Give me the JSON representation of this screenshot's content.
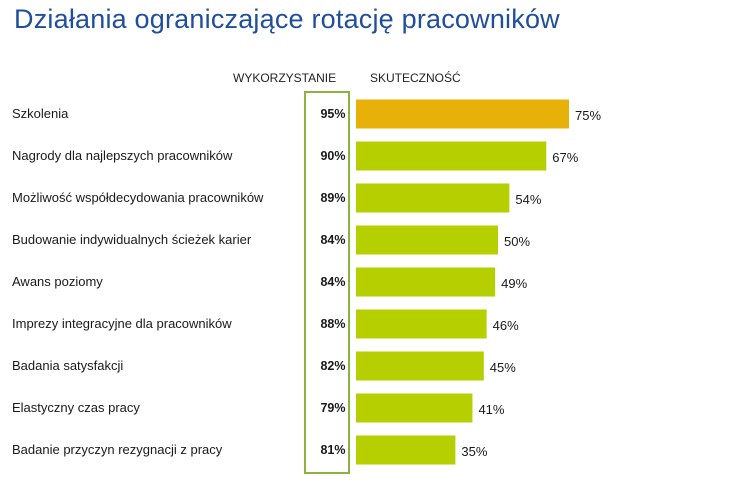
{
  "title": "Działania ograniczające rotację pracowników",
  "headers": {
    "usage": "WYKORZYSTANIE",
    "effectiveness": "SKUTECZNOŚĆ"
  },
  "colors": {
    "title": "#1f4e9c",
    "highlight_bar": "#e8b10a",
    "bar": "#b5cf00",
    "usage_box": "#8cb33e"
  },
  "chart_data": {
    "type": "bar",
    "orientation": "horizontal",
    "title": "Działania ograniczające rotację pracowników",
    "categories": [
      "Szkolenia",
      "Nagrody dla najlepszych pracowników",
      "Możliwość współdecydowania pracowników",
      "Budowanie indywidualnych ścieżek karier",
      "Awans poziomy",
      "Imprezy integracyjne dla pracowników",
      "Badania satysfakcji",
      "Elastyczny czas pracy",
      "Badanie przyczyn rezygnacji z pracy"
    ],
    "series": [
      {
        "name": "SKUTECZNOŚĆ",
        "values": [
          75,
          67,
          54,
          50,
          49,
          46,
          45,
          41,
          35
        ],
        "labels": [
          "75%",
          "67%",
          "54%",
          "50%",
          "49%",
          "46%",
          "45%",
          "41%",
          "35%"
        ]
      },
      {
        "name": "WYKORZYSTANIE",
        "values": [
          95,
          90,
          89,
          84,
          84,
          88,
          82,
          79,
          81
        ],
        "labels": [
          "95%",
          "90%",
          "89%",
          "84%",
          "84%",
          "88%",
          "82%",
          "79%",
          "81%"
        ]
      }
    ],
    "xlim": [
      0,
      100
    ],
    "grid": false,
    "legend": "none"
  }
}
